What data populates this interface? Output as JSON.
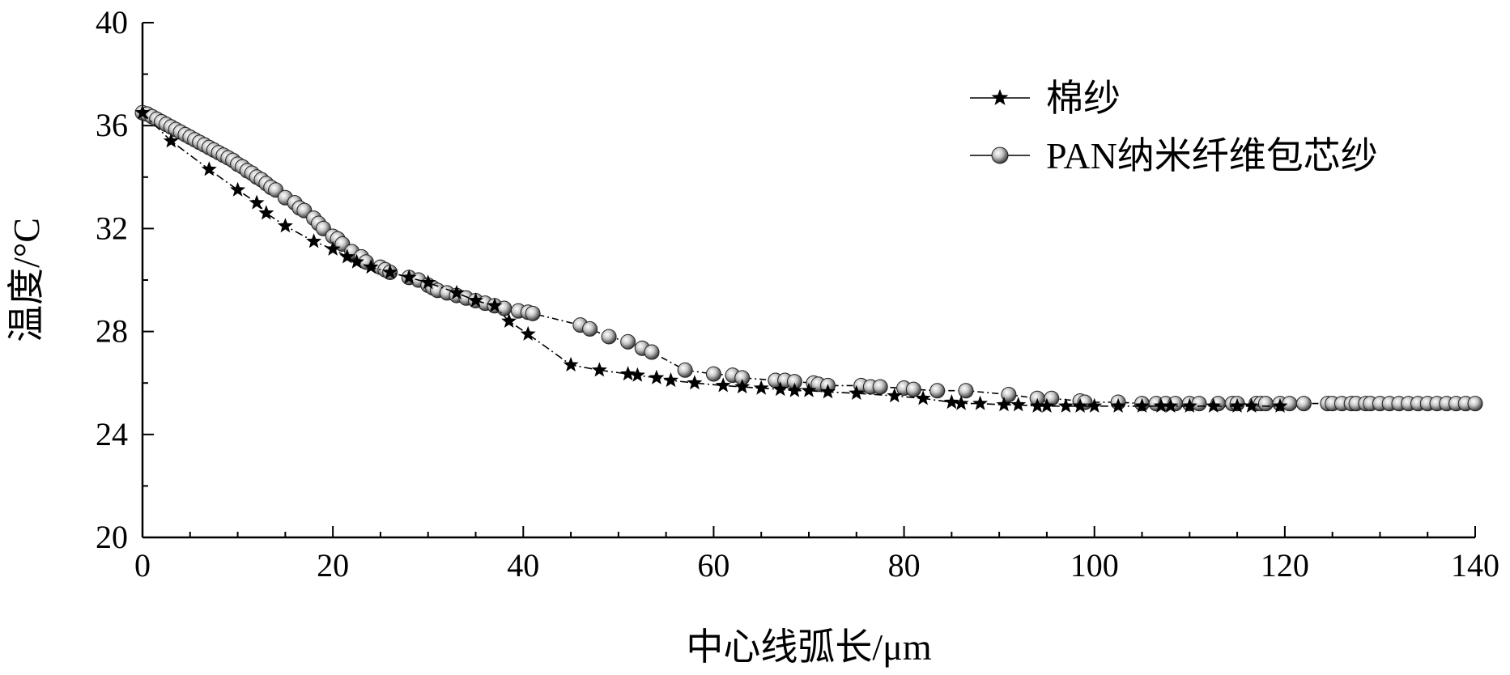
{
  "chart_data": {
    "type": "line",
    "xlabel": "中心线弧长/μm",
    "ylabel": "温度/°C",
    "xlim": [
      0,
      140
    ],
    "ylim": [
      20,
      40
    ],
    "x_ticks": [
      "0",
      "20",
      "40",
      "60",
      "80",
      "100",
      "120",
      "140"
    ],
    "y_ticks": [
      "20",
      "24",
      "28",
      "32",
      "36",
      "40"
    ],
    "grid": false,
    "legend_position": "top-right",
    "colors": {
      "line": "#000000",
      "star": "#000000",
      "ball": "#9a9a9a"
    },
    "series": [
      {
        "name": "棉纱",
        "marker": "star",
        "x": [
          0,
          3,
          7,
          10,
          12,
          13,
          15,
          18,
          20,
          21.5,
          22.5,
          24,
          26,
          28,
          30,
          33,
          35,
          37,
          38.5,
          40.5,
          45,
          48,
          51,
          52,
          54,
          55.5,
          58,
          61,
          63,
          65,
          67,
          68.5,
          70,
          72,
          75,
          79,
          82,
          85,
          86,
          88,
          90.5,
          92,
          94,
          95,
          97,
          98.5,
          100,
          102.5,
          105,
          107,
          108,
          110,
          112.5,
          115,
          116.5,
          119.5
        ],
        "y": [
          36.5,
          35.4,
          34.3,
          33.5,
          33.0,
          32.6,
          32.1,
          31.5,
          31.2,
          30.9,
          30.7,
          30.5,
          30.3,
          30.1,
          29.9,
          29.5,
          29.2,
          29.0,
          28.4,
          27.9,
          26.7,
          26.5,
          26.35,
          26.3,
          26.2,
          26.1,
          26.0,
          25.9,
          25.85,
          25.8,
          25.75,
          25.7,
          25.7,
          25.65,
          25.6,
          25.5,
          25.4,
          25.25,
          25.2,
          25.2,
          25.15,
          25.15,
          25.1,
          25.1,
          25.1,
          25.1,
          25.1,
          25.1,
          25.1,
          25.1,
          25.1,
          25.1,
          25.1,
          25.1,
          25.1,
          25.1
        ]
      },
      {
        "name": "PAN纳米纤维包芯纱",
        "marker": "ball",
        "x": [
          0,
          0.5,
          1,
          1.5,
          2,
          2.5,
          3,
          3.5,
          4,
          4.5,
          5,
          5.5,
          6,
          6.5,
          7,
          7.5,
          8,
          8.5,
          9,
          9.5,
          10,
          10.5,
          11,
          11.5,
          12,
          12.5,
          13,
          13.5,
          14,
          15,
          16,
          16.5,
          17,
          18,
          18.5,
          19,
          20,
          20.5,
          21,
          22,
          23,
          23.5,
          25,
          25.5,
          26,
          28,
          29,
          30,
          30.5,
          31,
          32,
          33,
          34,
          35,
          36,
          37,
          38,
          39.5,
          40.5,
          41,
          46,
          47,
          49,
          51,
          52.5,
          53.5,
          57,
          60,
          62,
          63,
          66.5,
          67.5,
          68.5,
          70.5,
          71,
          72,
          75.5,
          76.5,
          77.5,
          80,
          81,
          83.5,
          86.5,
          91,
          94,
          95.5,
          98.5,
          99,
          102.5,
          105,
          106.5,
          107.5,
          108.5,
          110,
          111,
          113,
          114.5,
          115,
          117,
          117.5,
          118,
          119.5,
          120.5,
          122,
          124.5,
          125,
          126,
          127,
          127.5,
          128.5,
          129,
          130,
          131,
          132,
          133,
          134,
          135,
          136,
          137,
          138,
          139,
          140
        ],
        "y": [
          36.5,
          36.45,
          36.35,
          36.25,
          36.15,
          36.05,
          35.95,
          35.85,
          35.75,
          35.65,
          35.55,
          35.45,
          35.35,
          35.25,
          35.15,
          35.05,
          34.95,
          34.85,
          34.75,
          34.65,
          34.5,
          34.4,
          34.25,
          34.15,
          34.0,
          33.9,
          33.75,
          33.6,
          33.5,
          33.2,
          33.0,
          32.8,
          32.7,
          32.4,
          32.2,
          32.0,
          31.7,
          31.6,
          31.4,
          31.1,
          30.9,
          30.7,
          30.5,
          30.4,
          30.3,
          30.1,
          30.0,
          29.8,
          29.7,
          29.6,
          29.5,
          29.4,
          29.3,
          29.2,
          29.1,
          29.0,
          28.9,
          28.8,
          28.75,
          28.7,
          28.25,
          28.1,
          27.8,
          27.6,
          27.35,
          27.2,
          26.5,
          26.35,
          26.3,
          26.2,
          26.1,
          26.1,
          26.05,
          26.0,
          25.95,
          25.9,
          25.9,
          25.85,
          25.85,
          25.8,
          25.75,
          25.7,
          25.7,
          25.55,
          25.4,
          25.4,
          25.3,
          25.25,
          25.25,
          25.2,
          25.2,
          25.2,
          25.2,
          25.2,
          25.2,
          25.2,
          25.2,
          25.2,
          25.2,
          25.2,
          25.2,
          25.2,
          25.2,
          25.2,
          25.2,
          25.2,
          25.2,
          25.2,
          25.2,
          25.2,
          25.2,
          25.2,
          25.2,
          25.2,
          25.2,
          25.2,
          25.2,
          25.2,
          25.2,
          25.2,
          25.2,
          25.2
        ]
      }
    ]
  }
}
